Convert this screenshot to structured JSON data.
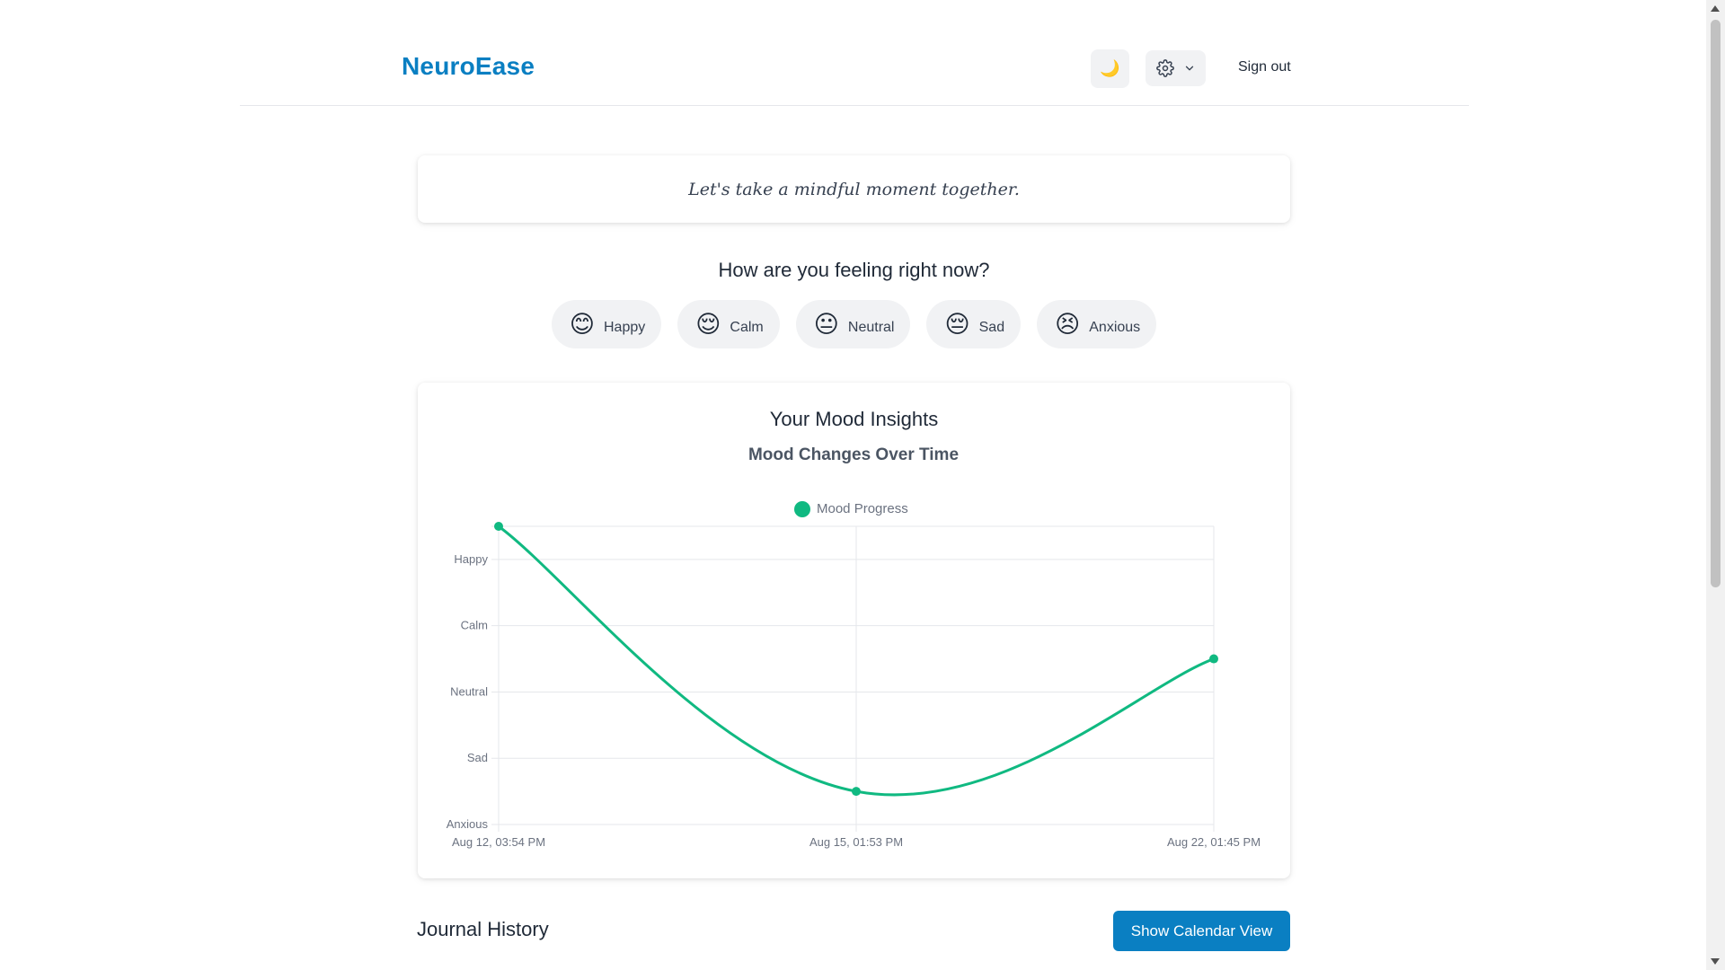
{
  "header": {
    "logo": "NeuroEase",
    "theme_icon": "🌙",
    "signout_label": "Sign out"
  },
  "quote": "Let's take a mindful moment together.",
  "mood_picker": {
    "question": "How are you feeling right now?",
    "options": [
      {
        "emoji": "😊",
        "label": "Happy"
      },
      {
        "emoji": "😌",
        "label": "Calm"
      },
      {
        "emoji": "😐",
        "label": "Neutral"
      },
      {
        "emoji": "😔",
        "label": "Sad"
      },
      {
        "emoji": "😣",
        "label": "Anxious"
      }
    ]
  },
  "insights": {
    "heading": "Your Mood Insights"
  },
  "chart_data": {
    "type": "line",
    "title": "Mood Changes Over Time",
    "legend_position": "top",
    "grid": true,
    "y_categories": [
      "Anxious",
      "Sad",
      "Neutral",
      "Calm",
      "Happy"
    ],
    "x": [
      "Aug 12, 03:54 PM",
      "Aug 15, 01:53 PM",
      "Aug 22, 01:45 PM"
    ],
    "series": [
      {
        "name": "Mood Progress",
        "color": "#10b981",
        "values": [
          4.5,
          0.5,
          2.5
        ]
      }
    ]
  },
  "journal": {
    "title": "Journal History",
    "calendar_button": "Show Calendar View"
  },
  "colors": {
    "brand": "#0a7fc2",
    "series": "#10b981"
  }
}
